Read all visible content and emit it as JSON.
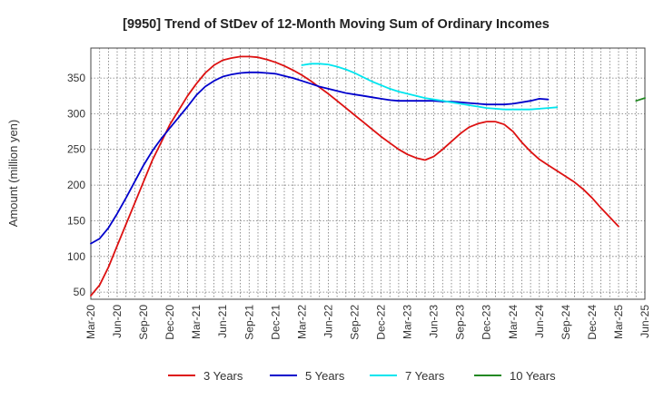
{
  "chart_data": {
    "type": "line",
    "title": "[9950]  Trend of StDev of 12-Month Moving Sum of Ordinary Incomes",
    "xlabel": "",
    "ylabel": "Amount (million yen)",
    "ylim": [
      40,
      392
    ],
    "yticks": [
      50,
      100,
      150,
      200,
      250,
      300,
      350
    ],
    "xlim": [
      0,
      63
    ],
    "xtick_labels": [
      "Mar-20",
      "Jun-20",
      "Sep-20",
      "Dec-20",
      "Mar-21",
      "Jun-21",
      "Sep-21",
      "Dec-21",
      "Mar-22",
      "Jun-22",
      "Sep-22",
      "Dec-22",
      "Mar-23",
      "Jun-23",
      "Sep-23",
      "Dec-23",
      "Mar-24",
      "Jun-24",
      "Sep-24",
      "Dec-24",
      "Mar-25",
      "Jun-25"
    ],
    "grid": true,
    "legend_position": "bottom",
    "series": [
      {
        "name": "3 Years",
        "color": "#dd1111",
        "start_index": 0,
        "values": [
          45,
          60,
          85,
          115,
          145,
          175,
          205,
          235,
          260,
          285,
          305,
          325,
          342,
          357,
          368,
          375,
          378,
          380,
          380,
          379,
          376,
          372,
          367,
          361,
          354,
          346,
          337,
          328,
          318,
          308,
          298,
          288,
          278,
          268,
          259,
          250,
          243,
          238,
          235,
          240,
          250,
          261,
          272,
          281,
          286,
          289,
          289,
          285,
          275,
          260,
          247,
          236,
          228,
          220,
          212,
          204,
          194,
          182,
          168,
          155,
          142
        ]
      },
      {
        "name": "5 Years",
        "color": "#0000cc",
        "start_index": 0,
        "values": [
          118,
          125,
          140,
          160,
          182,
          205,
          228,
          248,
          265,
          280,
          295,
          310,
          326,
          338,
          346,
          352,
          355,
          357,
          358,
          358,
          357,
          356,
          353,
          350,
          346,
          342,
          338,
          335,
          332,
          329,
          327,
          325,
          323,
          321,
          319,
          318,
          318,
          318,
          318,
          318,
          317,
          317,
          316,
          315,
          314,
          313,
          313,
          313,
          314,
          316,
          318,
          321,
          320
        ]
      },
      {
        "name": "7 Years",
        "color": "#00e5ee",
        "start_index": 24,
        "values": [
          368,
          370,
          370,
          369,
          366,
          362,
          357,
          351,
          345,
          340,
          335,
          331,
          328,
          325,
          322,
          320,
          318,
          316,
          314,
          312,
          310,
          308,
          307,
          306,
          306,
          306,
          306,
          307,
          308,
          309
        ]
      },
      {
        "name": "10 Years",
        "color": "#228822",
        "start_index": 62,
        "values": [
          318,
          322
        ]
      }
    ]
  }
}
